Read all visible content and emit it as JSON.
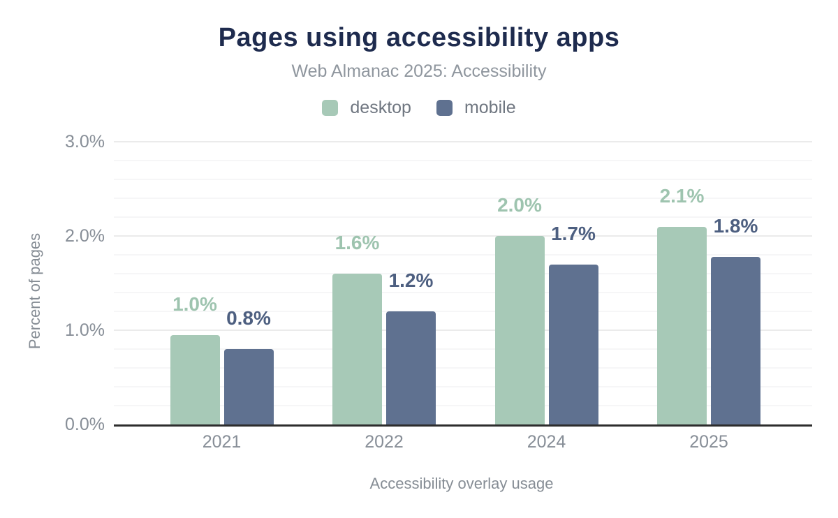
{
  "chart_data": {
    "type": "bar",
    "title": "Pages using accessibility apps",
    "subtitle": "Web Almanac 2025: Accessibility",
    "xlabel": "Accessibility overlay usage",
    "ylabel": "Percent of pages",
    "categories": [
      "2021",
      "2022",
      "2024",
      "2025"
    ],
    "series": [
      {
        "name": "desktop",
        "color": "#a7c9b7",
        "label_color": "#9ec4af",
        "values": [
          0.95,
          1.6,
          2.0,
          2.1
        ],
        "labels": [
          "1.0%",
          "1.6%",
          "2.0%",
          "2.1%"
        ]
      },
      {
        "name": "mobile",
        "color": "#5f7190",
        "label_color": "#4d5f80",
        "values": [
          0.8,
          1.2,
          1.7,
          1.78
        ],
        "labels": [
          "0.8%",
          "1.2%",
          "1.7%",
          "1.8%"
        ]
      }
    ],
    "yticks": [
      {
        "value": 0,
        "label": "0.0%"
      },
      {
        "value": 1,
        "label": "1.0%"
      },
      {
        "value": 2,
        "label": "2.0%"
      },
      {
        "value": 3,
        "label": "3.0%"
      }
    ],
    "ylim": [
      0,
      3
    ],
    "grid": {
      "minor_step": 0.2,
      "major_step": 1.0,
      "minor_color": "#f6f6f7",
      "major_color": "#ebebeb"
    },
    "legend_position": "top",
    "axis_line_color": "#2d2d2d"
  },
  "colors": {
    "title": "#1e2b4e",
    "subtitle": "#8f969e",
    "legend_text": "#6f7680",
    "tick_text": "#878e97",
    "axis_title_text": "#858c94",
    "background": "#ffffff"
  }
}
